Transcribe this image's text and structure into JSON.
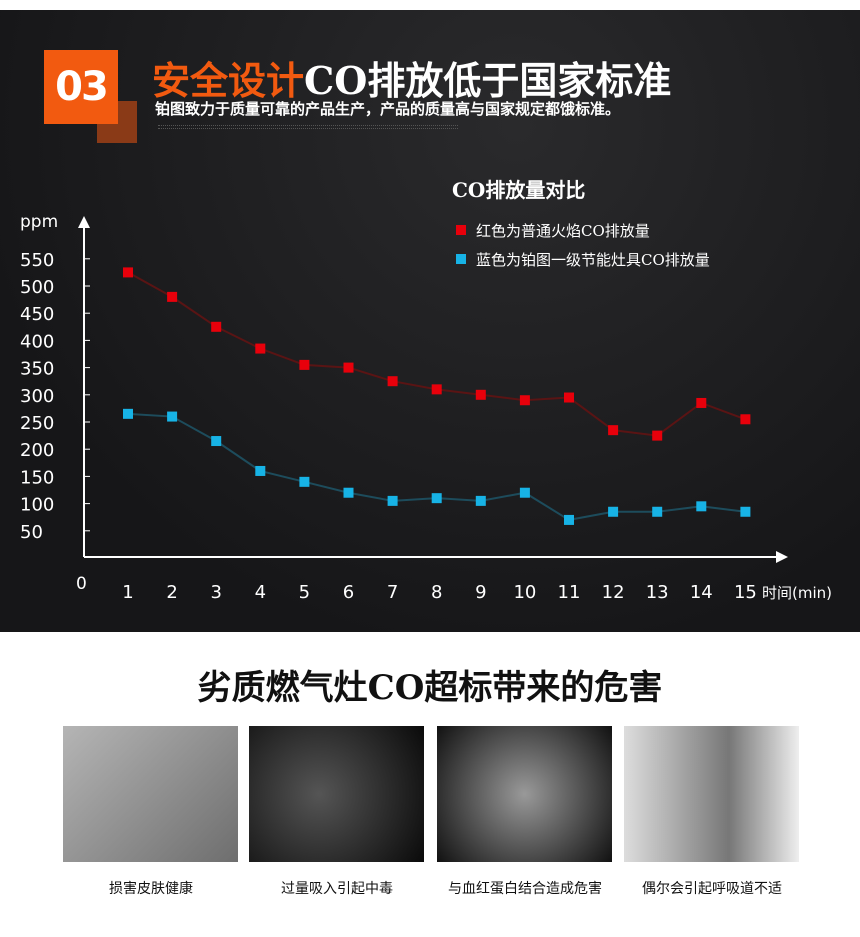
{
  "header": {
    "badge": "03",
    "title_highlight": "安全设计",
    "title_rest": "CO排放低于国家标准",
    "subtitle": "铂图致力于质量可靠的产品生产，产品的质量高与国家规定都饿标准。"
  },
  "chart_data": {
    "type": "line",
    "title": "CO排放量对比",
    "ylabel": "ppm",
    "xlabel": "时间(min)",
    "ylim": [
      0,
      550
    ],
    "yticks": [
      50,
      100,
      150,
      200,
      250,
      300,
      350,
      400,
      450,
      500,
      550
    ],
    "origin_label": "0",
    "x": [
      1,
      2,
      3,
      4,
      5,
      6,
      7,
      8,
      9,
      10,
      11,
      12,
      13,
      14,
      15
    ],
    "legend_position": "top-right",
    "series": [
      {
        "name": "红色为普通火焰CO排放量",
        "color": "#e8000b",
        "line_color": "#5a1414",
        "values": [
          525,
          480,
          425,
          385,
          355,
          350,
          325,
          310,
          300,
          290,
          295,
          235,
          225,
          285,
          255
        ]
      },
      {
        "name": "蓝色为铂图一级节能灶具CO排放量",
        "color": "#17b3e6",
        "line_color": "#1d4c5c",
        "values": [
          265,
          260,
          215,
          160,
          140,
          120,
          105,
          110,
          105,
          120,
          70,
          85,
          85,
          95,
          85
        ]
      }
    ]
  },
  "hazards": {
    "title": "劣质燃气灶CO超标带来的危害",
    "items": [
      {
        "caption": "损害皮肤健康",
        "image": "skin-photo"
      },
      {
        "caption": "过量吸入引起中毒",
        "image": "respiratory-xray"
      },
      {
        "caption": "与血红蛋白结合造成危害",
        "image": "blood-vessel-render"
      },
      {
        "caption": "偶尔会引起呼吸道不适",
        "image": "coughing-man-photo"
      }
    ]
  }
}
